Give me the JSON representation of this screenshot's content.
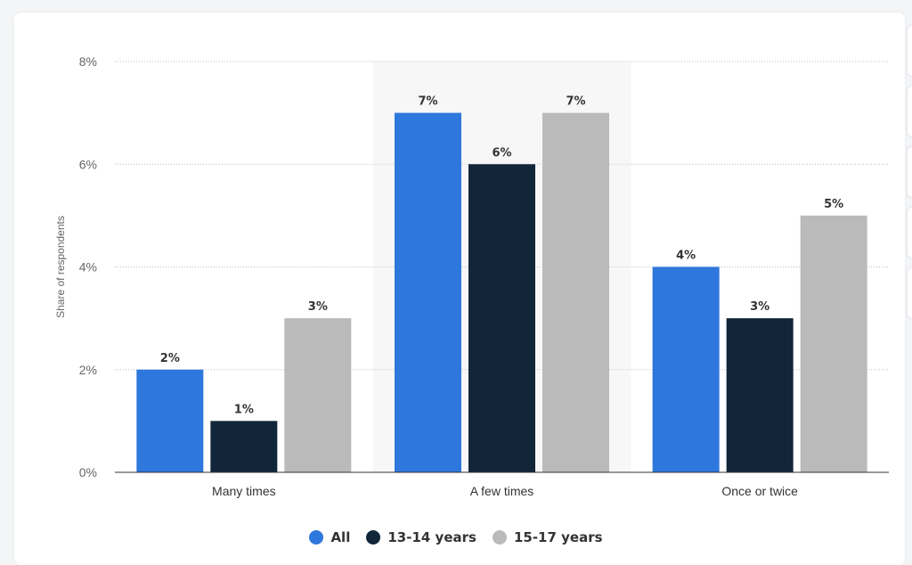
{
  "chart_data": {
    "type": "bar",
    "categories": [
      "Many times",
      "A few times",
      "Once or twice"
    ],
    "series": [
      {
        "name": "All",
        "values": [
          2,
          7,
          4
        ],
        "labels": [
          "2%",
          "7%",
          "4%"
        ],
        "color": "#2e77dc"
      },
      {
        "name": "13-14 years",
        "values": [
          1,
          6,
          3
        ],
        "labels": [
          "1%",
          "6%",
          "3%"
        ],
        "color": "#12263a"
      },
      {
        "name": "15-17 years",
        "values": [
          3,
          7,
          5
        ],
        "labels": [
          "3%",
          "7%",
          "5%"
        ],
        "color": "#bababa"
      }
    ],
    "title": "",
    "xlabel": "",
    "ylabel": "Share of respondents",
    "ylim": [
      0,
      8
    ],
    "yticks": [
      0,
      2,
      4,
      6,
      8
    ],
    "ytick_labels": [
      "0%",
      "2%",
      "4%",
      "6%",
      "8%"
    ],
    "grid": true,
    "legend_position": "bottom",
    "highlighted_category": "A few times"
  }
}
